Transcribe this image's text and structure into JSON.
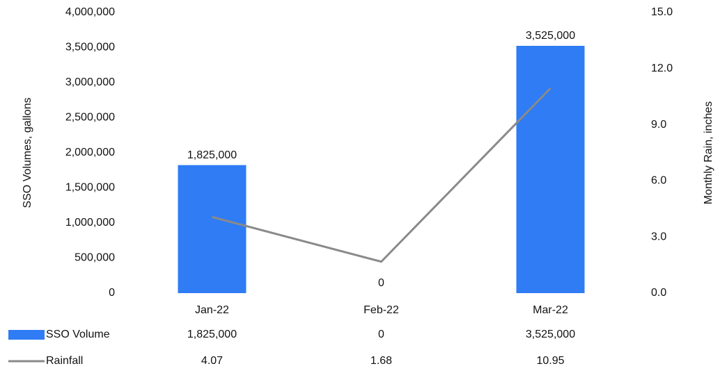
{
  "chart_data": {
    "type": "bar_line",
    "categories": [
      "Jan-22",
      "Feb-22",
      "Mar-22"
    ],
    "ylabel": "SSO Volumes, gallons",
    "y2label": "Monthly Rain, inches",
    "series": [
      {
        "name": "SSO Volume",
        "color": "#2f7cf4",
        "type": "bar",
        "values": [
          1825000,
          0,
          3525000
        ],
        "value_labels": [
          "1,825,000",
          "0",
          "3,525,000"
        ]
      },
      {
        "name": "Rainfall",
        "color": "#8a8a8a",
        "type": "line",
        "axis": "y2",
        "values": [
          4.07,
          1.68,
          10.95
        ]
      }
    ],
    "ylim": [
      0,
      4000000
    ],
    "yticks": [
      0,
      {
        "value": 500000,
        "label": "500,000"
      },
      {
        "value": 1000000,
        "label": "1,000,000"
      },
      {
        "value": 1500000,
        "label": "1,500,000"
      },
      {
        "value": 2000000,
        "label": "2,000,000"
      },
      {
        "value": 2500000,
        "label": "2,500,000"
      },
      {
        "value": 3000000,
        "label": "3,000,000"
      },
      {
        "value": 3500000,
        "label": "3,500,000"
      },
      {
        "value": 4000000,
        "label": "4,000,000"
      }
    ],
    "y2lim": [
      0,
      15
    ],
    "y2ticks": [
      {
        "value": 0,
        "label": "0.0"
      },
      {
        "value": 3,
        "label": "3.0"
      },
      {
        "value": 6,
        "label": "6.0"
      },
      {
        "value": 9,
        "label": "9.0"
      },
      {
        "value": 12,
        "label": "12.0"
      },
      {
        "value": 15,
        "label": "15.0"
      }
    ],
    "data_table": true
  }
}
